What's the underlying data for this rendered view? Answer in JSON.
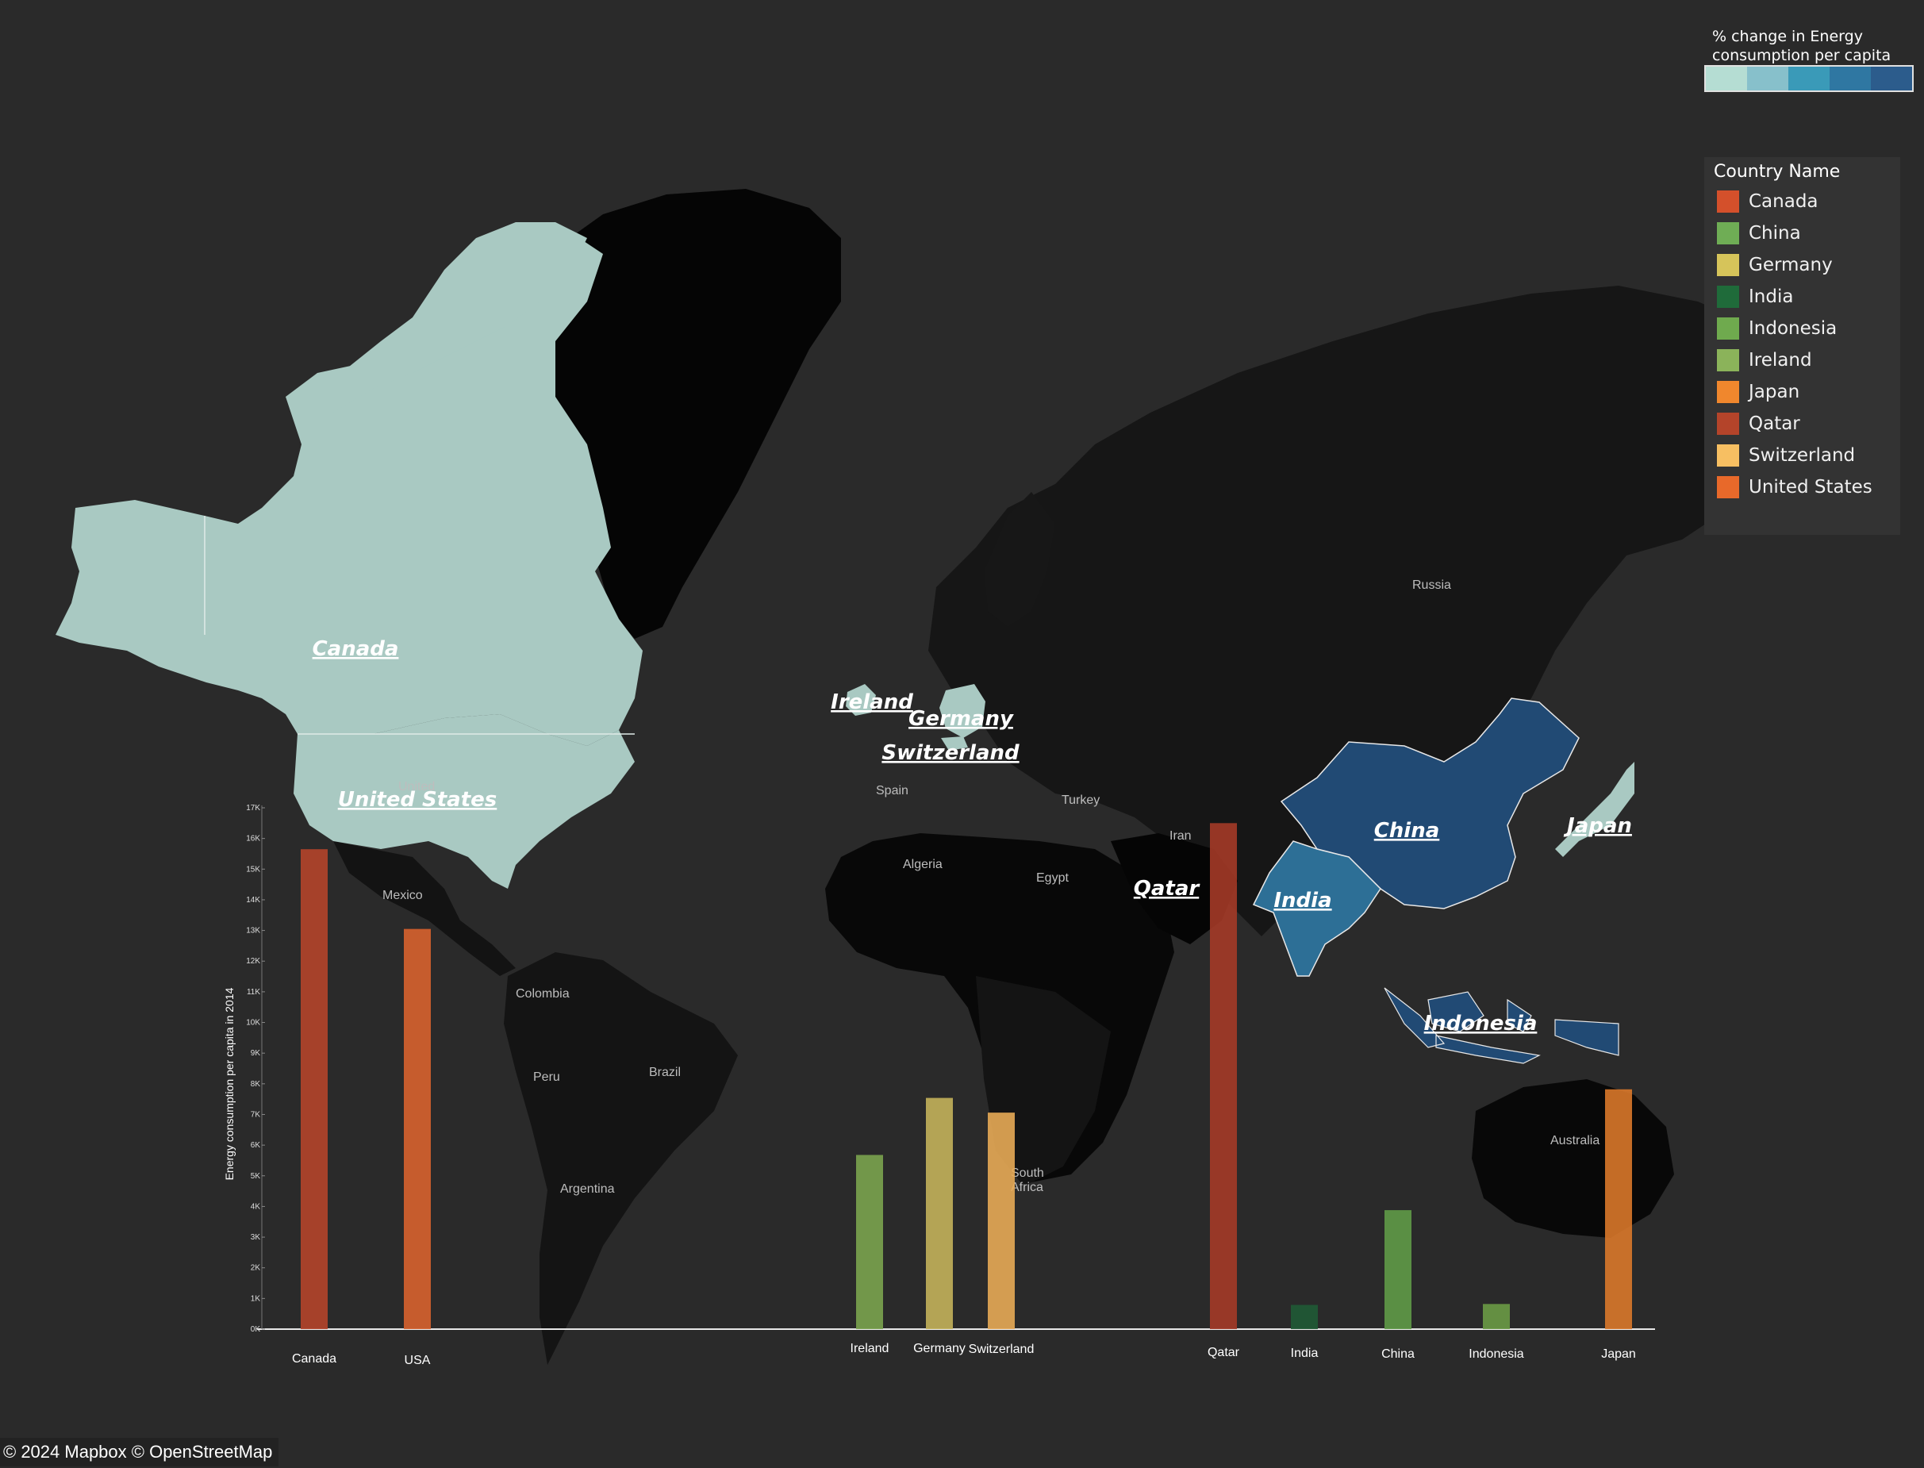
{
  "map": {
    "country_labels": [
      "Canada",
      "United States",
      "Ireland",
      "Germany",
      "Switzerland",
      "Qatar",
      "China",
      "Japan",
      "India",
      "Indonesia"
    ],
    "place_labels": {
      "russia": "Russia",
      "united": "United",
      "spain": "Spain",
      "turkey": "Turkey",
      "iran": "Iran",
      "algeria": "Algeria",
      "egypt": "Egypt",
      "mexico": "Mexico",
      "colombia": "Colombia",
      "peru": "Peru",
      "brazil": "Brazil",
      "argentina": "Argentina",
      "south_africa_1": "South",
      "south_africa_2": "Africa",
      "australia": "Australia"
    },
    "fill_colors": {
      "light": "#a9c9c2",
      "dark_blue": "#214a74",
      "mid_blue": "#2d6f96",
      "land": "#141414",
      "land_dark": "#050505",
      "ocean": "#2a2a2a"
    }
  },
  "legend": {
    "title": "Country Name",
    "items": [
      {
        "label": "Canada",
        "color": "#d4502b"
      },
      {
        "label": "China",
        "color": "#6fad55"
      },
      {
        "label": "Germany",
        "color": "#d6c45a"
      },
      {
        "label": "India",
        "color": "#1f6b3a"
      },
      {
        "label": "Indonesia",
        "color": "#6faa4e"
      },
      {
        "label": "Ireland",
        "color": "#8bb35a"
      },
      {
        "label": "Japan",
        "color": "#f0872d"
      },
      {
        "label": "Qatar",
        "color": "#b4442a"
      },
      {
        "label": "Switzerland",
        "color": "#f7bf62"
      },
      {
        "label": "United States",
        "color": "#e8692a"
      }
    ]
  },
  "color_ramp": {
    "title": "% change in Energy consumption per capita",
    "colors": [
      "#b5ddd3",
      "#87c0cb",
      "#3a9ab8",
      "#2f77a2",
      "#2c5c8c"
    ]
  },
  "chart_data": {
    "type": "bar",
    "ylabel": "Energy consumption per capita in 2014",
    "ylim": [
      0,
      17000
    ],
    "yticks": [
      "0K",
      "1K",
      "2K",
      "3K",
      "4K",
      "5K",
      "6K",
      "7K",
      "8K",
      "9K",
      "10K",
      "11K",
      "12K",
      "13K",
      "14K",
      "15K",
      "16K",
      "17K"
    ],
    "categories": [
      "Canada",
      "USA",
      "Ireland",
      "Germany",
      "Switzerland",
      "Qatar",
      "India",
      "China",
      "Indonesia",
      "Japan"
    ],
    "values": [
      15650,
      13050,
      5680,
      7540,
      7060,
      16500,
      790,
      3880,
      820,
      7820
    ],
    "colors": [
      "#b4442a",
      "#d7622d",
      "#7aa34e",
      "#c3b15a",
      "#e7aa55",
      "#a43a27",
      "#1f5a35",
      "#5f9a47",
      "#6a9a45",
      "#d9782a"
    ]
  },
  "attribution": "© 2024 Mapbox © OpenStreetMap"
}
